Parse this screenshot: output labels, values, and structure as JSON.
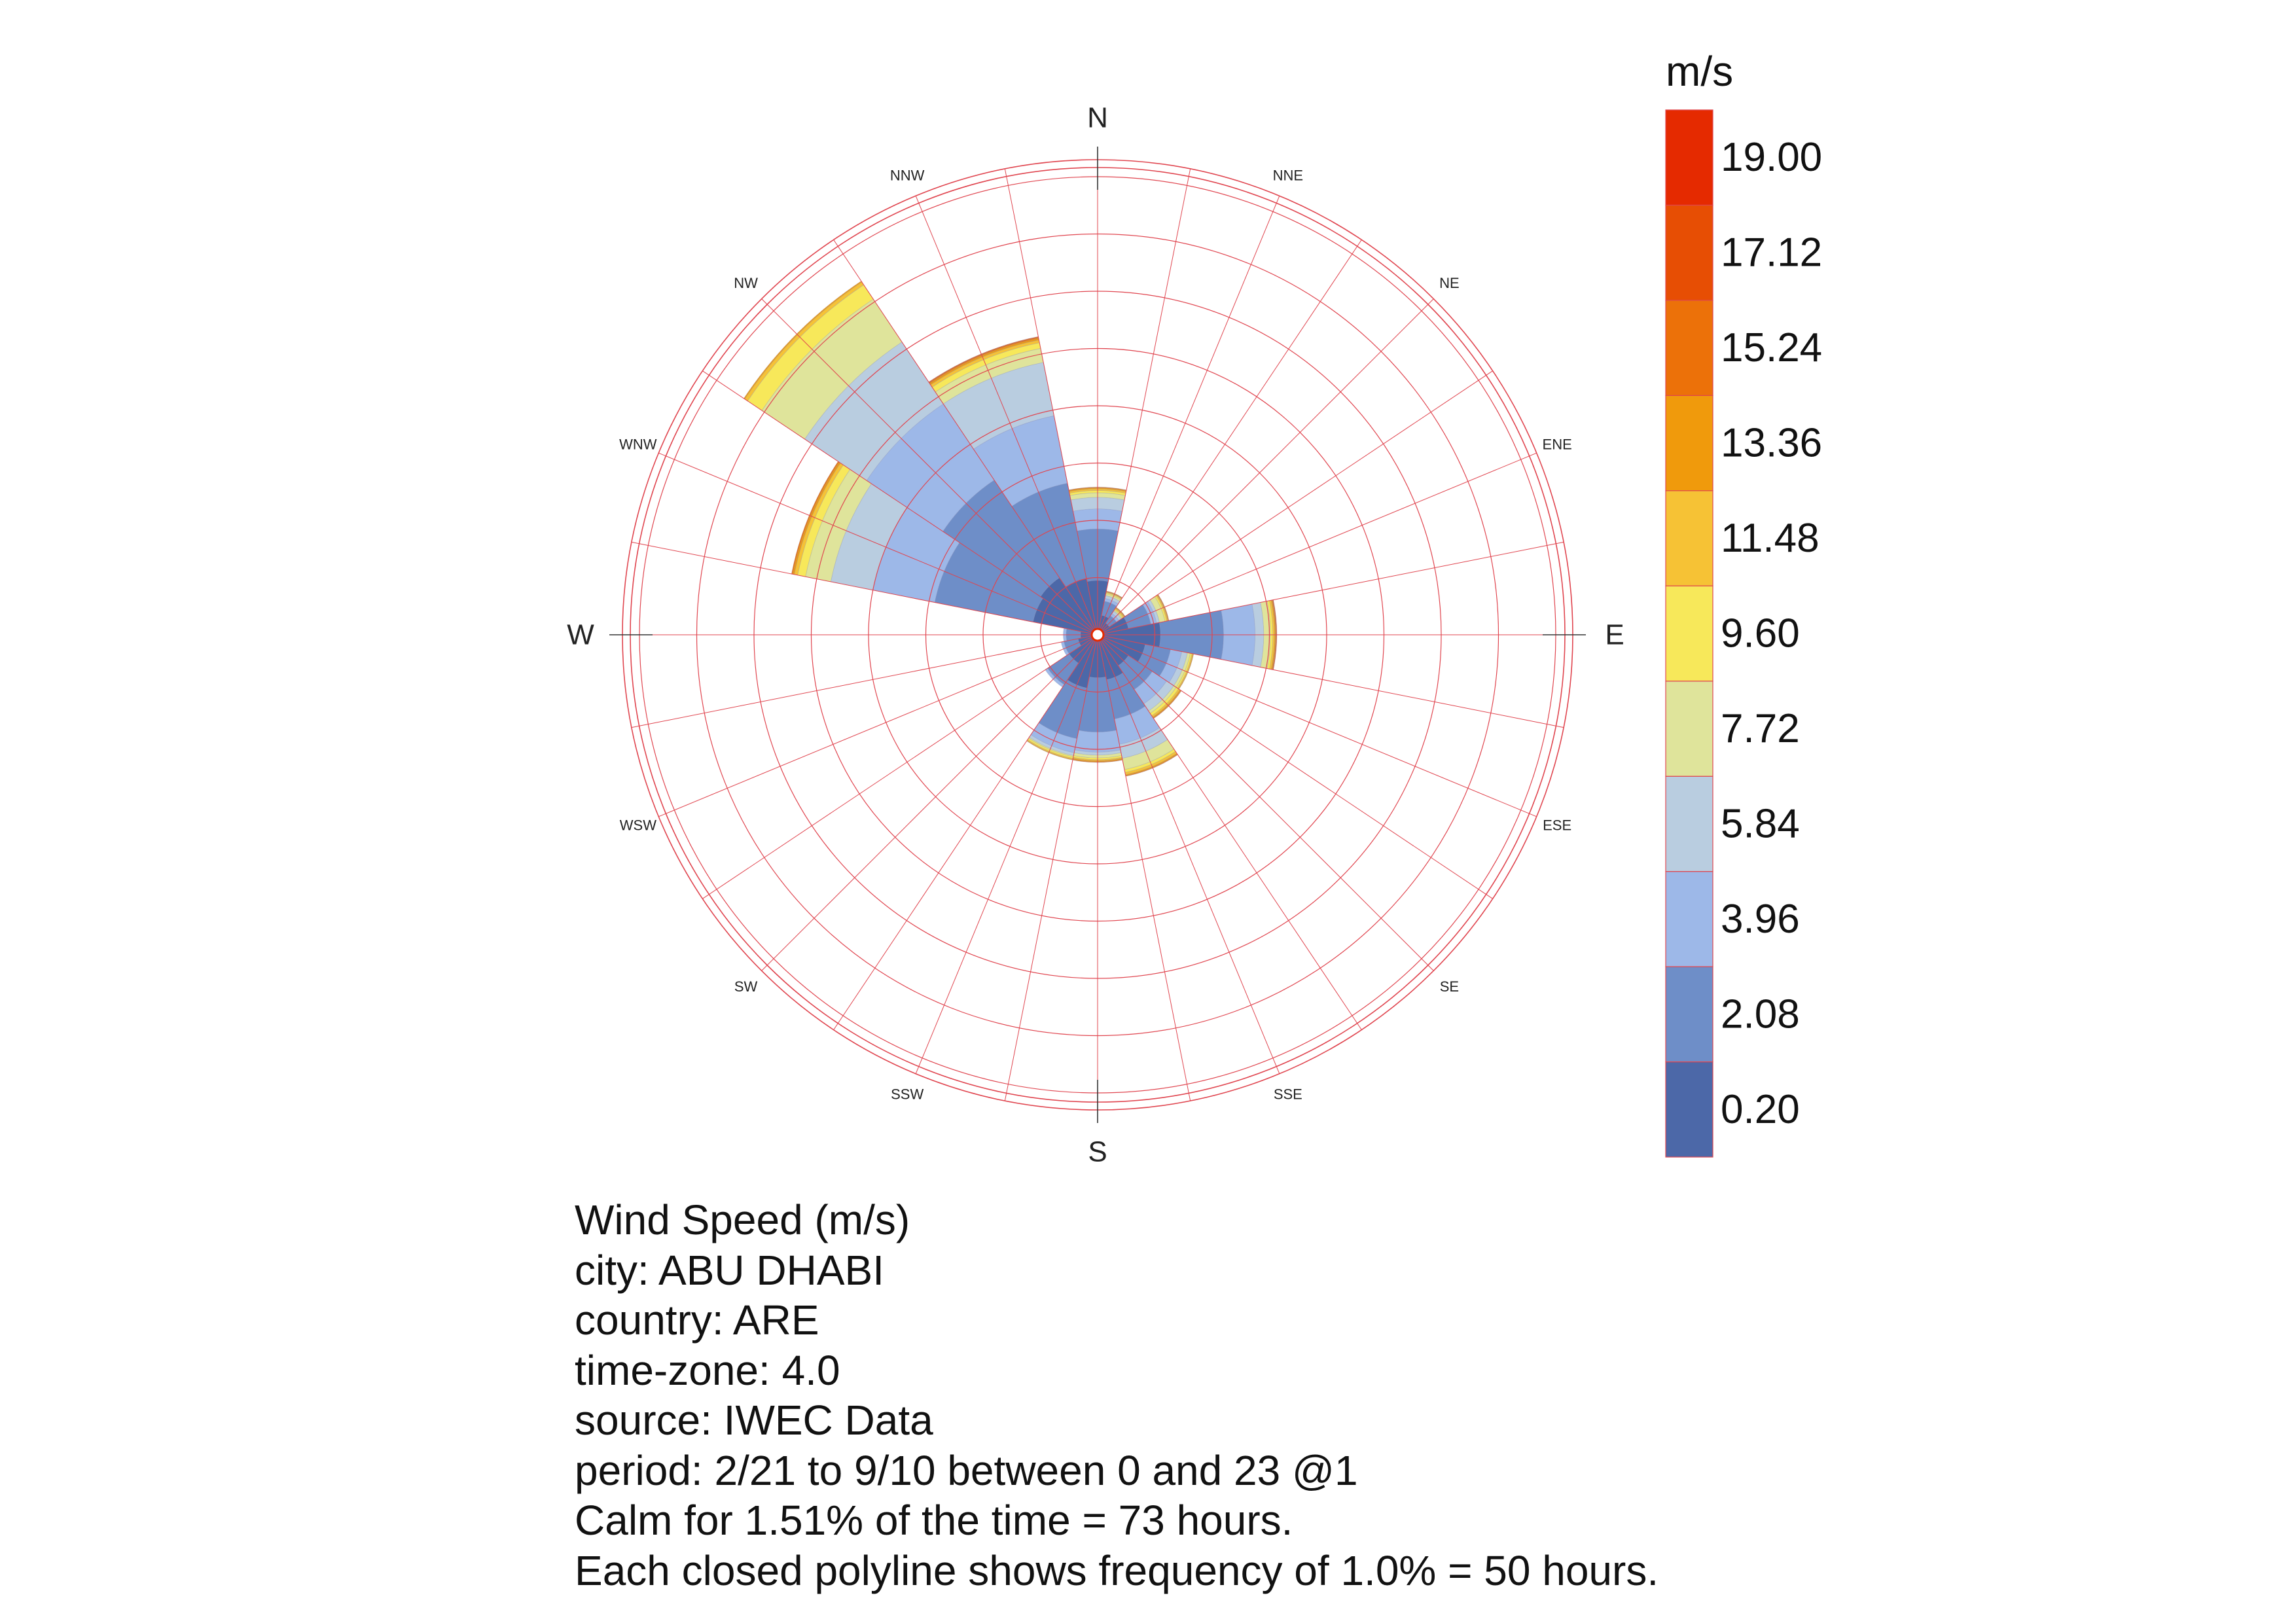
{
  "chart_data": {
    "type": "wind_rose",
    "directions": [
      "N",
      "NNE",
      "NE",
      "ENE",
      "E",
      "ESE",
      "SE",
      "SSE",
      "S",
      "SSW",
      "SW",
      "WSW",
      "W",
      "WNW",
      "NW",
      "NNW"
    ],
    "major_direction_labels": [
      "N",
      "E",
      "S",
      "W"
    ],
    "ring_step_percent": 1.0,
    "rings_percent": [
      1,
      2,
      3,
      4,
      5,
      6,
      7,
      8
    ],
    "legend": {
      "title": "m/s",
      "tick_labels": [
        "0.20",
        "2.08",
        "3.96",
        "5.84",
        "7.72",
        "9.60",
        "11.48",
        "13.36",
        "15.24",
        "17.12",
        "19.00"
      ],
      "colors": [
        "#4c68a8",
        "#6e8ec8",
        "#9db8e8",
        "#b9cde0",
        "#dfe49b",
        "#f7e85a",
        "#f6c235",
        "#f09a0c",
        "#ec7109",
        "#e74e04",
        "#e52a00"
      ]
    },
    "series_by_speed_bin_percent": [
      [
        0.95,
        0.35,
        0.25,
        0.55,
        1.1,
        0.85,
        0.65,
        0.8,
        0.75,
        0.95,
        0.6,
        0.35,
        0.3,
        1.15,
        1.2,
        1.0
      ],
      [
        0.9,
        0.25,
        0.15,
        0.4,
        1.1,
        0.45,
        0.5,
        0.7,
        0.95,
        0.9,
        0.45,
        0.25,
        0.25,
        1.75,
        2.05,
        1.7
      ],
      [
        0.35,
        0.05,
        0.05,
        0.1,
        0.55,
        0.2,
        0.3,
        0.45,
        0.35,
        0.25,
        0.05,
        0.05,
        0.05,
        1.1,
        1.6,
        1.2
      ],
      [
        0.2,
        0.05,
        0.05,
        0.05,
        0.15,
        0.1,
        0.15,
        0.25,
        0.05,
        0.05,
        0.0,
        0.0,
        0.0,
        0.75,
        1.3,
        0.95
      ],
      [
        0.08,
        0.03,
        0.02,
        0.1,
        0.12,
        0.05,
        0.05,
        0.2,
        0.05,
        0.02,
        0.0,
        0.0,
        0.0,
        0.45,
        0.9,
        0.25
      ],
      [
        0.04,
        0.02,
        0.02,
        0.03,
        0.04,
        0.03,
        0.05,
        0.05,
        0.03,
        0.03,
        0.0,
        0.0,
        0.0,
        0.14,
        0.3,
        0.1
      ],
      [
        0.03,
        0.01,
        0.02,
        0.02,
        0.03,
        0.02,
        0.03,
        0.04,
        0.02,
        0.02,
        0.0,
        0.0,
        0.0,
        0.06,
        0.06,
        0.05
      ],
      [
        0.02,
        0.01,
        0.01,
        0.01,
        0.02,
        0.01,
        0.02,
        0.02,
        0.02,
        0.01,
        0.0,
        0.0,
        0.0,
        0.03,
        0.02,
        0.03
      ],
      [
        0.01,
        0.01,
        0.01,
        0.01,
        0.01,
        0.0,
        0.01,
        0.01,
        0.01,
        0.0,
        0.0,
        0.0,
        0.0,
        0.02,
        0.0,
        0.02
      ],
      [
        0.0,
        0.0,
        0.0,
        0.0,
        0.01,
        0.0,
        0.0,
        0.0,
        0.0,
        0.0,
        0.0,
        0.0,
        0.0,
        0.0,
        0.0,
        0.01
      ]
    ]
  },
  "info": {
    "line1": "Wind Speed (m/s)",
    "line2": "city: ABU DHABI",
    "line3": "country: ARE",
    "line4": "time-zone: 4.0",
    "line5": "source: IWEC Data",
    "line6": "period: 2/21 to 9/10 between 0 and 23 @1",
    "line7": "Calm for 1.51% of the time = 73 hours.",
    "line8": "Each closed polyline shows frequency of 1.0% = 50 hours."
  }
}
